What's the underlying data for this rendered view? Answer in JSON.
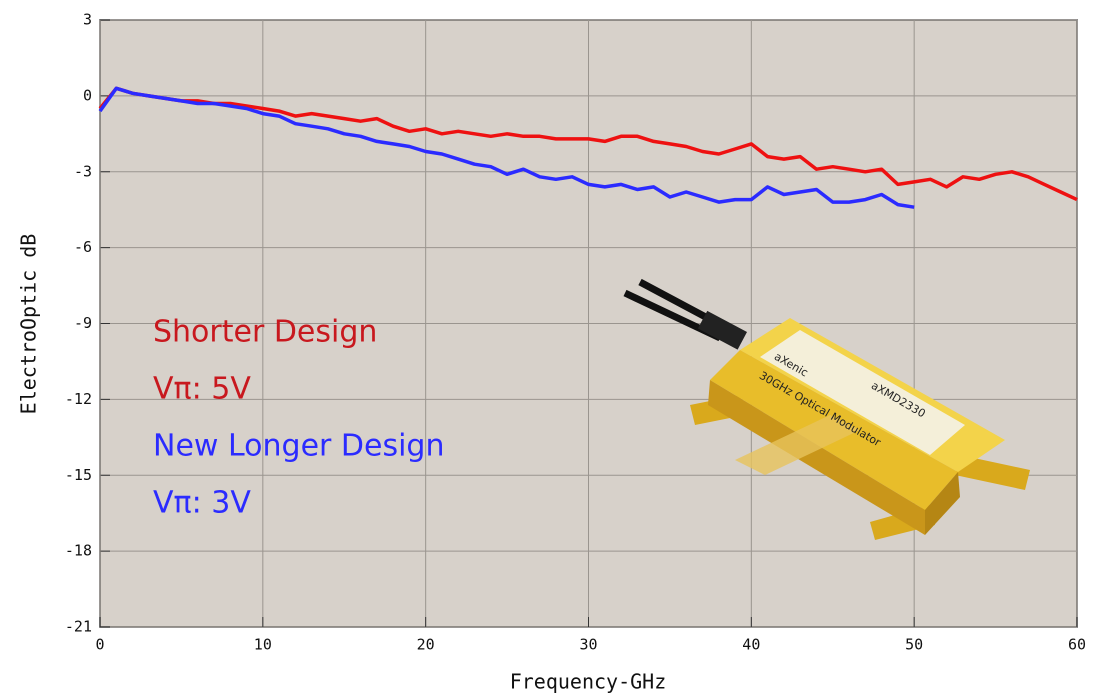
{
  "chart_data": {
    "type": "line",
    "x_label": "Frequency-GHz",
    "y_label": "ElectroOptic dB",
    "x": [
      0,
      1,
      2,
      3,
      4,
      5,
      6,
      7,
      8,
      9,
      10,
      11,
      12,
      13,
      14,
      15,
      16,
      17,
      18,
      19,
      20,
      21,
      22,
      23,
      24,
      25,
      26,
      27,
      28,
      29,
      30,
      31,
      32,
      33,
      34,
      35,
      36,
      37,
      38,
      39,
      40,
      41,
      42,
      43,
      44,
      45,
      46,
      47,
      48,
      49,
      50,
      51,
      52,
      53,
      54,
      55,
      56,
      57,
      58,
      59,
      60
    ],
    "series": [
      {
        "name": "Shorter Design",
        "color": "#ee1111",
        "values": [
          -0.5,
          0.3,
          0.1,
          0,
          -0.1,
          -0.2,
          -0.2,
          -0.3,
          -0.3,
          -0.4,
          -0.5,
          -0.6,
          -0.8,
          -0.7,
          -0.8,
          -0.9,
          -1.0,
          -0.9,
          -1.2,
          -1.4,
          -1.3,
          -1.5,
          -1.4,
          -1.5,
          -1.6,
          -1.5,
          -1.6,
          -1.6,
          -1.7,
          -1.7,
          -1.7,
          -1.8,
          -1.6,
          -1.6,
          -1.8,
          -1.9,
          -2.0,
          -2.2,
          -2.3,
          -2.1,
          -1.9,
          -2.4,
          -2.5,
          -2.4,
          -2.9,
          -2.8,
          -2.9,
          -3.0,
          -2.9,
          -3.5,
          -3.4,
          -3.3,
          -3.6,
          -3.2,
          -3.3,
          -3.1,
          -3.0,
          -3.2,
          -3.5,
          -3.8,
          -4.1
        ]
      },
      {
        "name": "New Longer Design",
        "color": "#2b2bff",
        "values": [
          -0.6,
          0.3,
          0.1,
          0,
          -0.1,
          -0.2,
          -0.3,
          -0.3,
          -0.4,
          -0.5,
          -0.7,
          -0.8,
          -1.1,
          -1.2,
          -1.3,
          -1.5,
          -1.6,
          -1.8,
          -1.9,
          -2.0,
          -2.2,
          -2.3,
          -2.5,
          -2.7,
          -2.8,
          -3.1,
          -2.9,
          -3.2,
          -3.3,
          -3.2,
          -3.5,
          -3.6,
          -3.5,
          -3.7,
          -3.6,
          -4.0,
          -3.8,
          -4.0,
          -4.2,
          -4.1,
          -4.1,
          -3.6,
          -3.9,
          -3.8,
          -3.7,
          -4.2,
          -4.2,
          -4.1,
          -3.9,
          -4.3,
          -4.4,
          null,
          null,
          null,
          null,
          null,
          null,
          null,
          null,
          null,
          null
        ]
      }
    ],
    "annotations": [
      {
        "text": "Shorter Design",
        "color": "#c8181e"
      },
      {
        "text": "Vπ: 5V",
        "color": "#c8181e"
      },
      {
        "text": "New Longer Design",
        "color": "#2b2bff"
      },
      {
        "text": "Vπ: 3V",
        "color": "#2b2bff"
      }
    ],
    "image_labels": [
      "aXenic",
      "30GHz Optical Modulator",
      "aXMD2330"
    ],
    "xlim": [
      0,
      60
    ],
    "xticks": [
      0,
      10,
      20,
      30,
      40,
      50,
      60
    ],
    "ylim": [
      -21,
      3
    ],
    "yticks": [
      3,
      0,
      -3,
      -6,
      -9,
      -12,
      -15,
      -18,
      -21
    ],
    "grid": true,
    "background": "#d7d1ca"
  }
}
